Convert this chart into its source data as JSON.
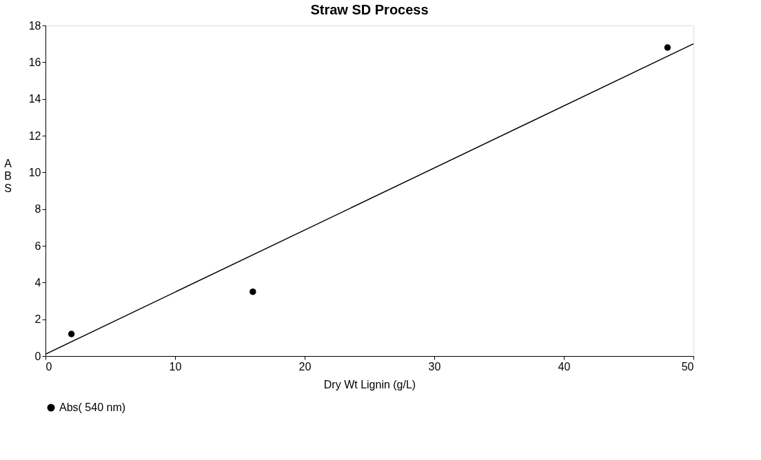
{
  "chart_data": {
    "type": "scatter",
    "title": "Straw SD Process",
    "xlabel": "Dry Wt Lignin (g/L)",
    "ylabel": "ABS",
    "xlim": [
      0,
      50
    ],
    "xticks": [
      0,
      10,
      20,
      30,
      40,
      50
    ],
    "ylim": [
      0,
      18
    ],
    "yticks": [
      0,
      2,
      4,
      6,
      8,
      10,
      12,
      14,
      16,
      18
    ],
    "grid": false,
    "legend": "bottom",
    "series": [
      {
        "name": "Abs( 540 nm)",
        "color": "#000000",
        "marker": "circle",
        "x": [
          2,
          16,
          48
        ],
        "values": [
          1.2,
          3.5,
          16.8
        ]
      },
      {
        "type": "line",
        "color": "#000000",
        "x": [
          0,
          50
        ],
        "values": [
          0.1,
          17.0
        ],
        "line_style": "solid",
        "marker": "none"
      }
    ]
  }
}
